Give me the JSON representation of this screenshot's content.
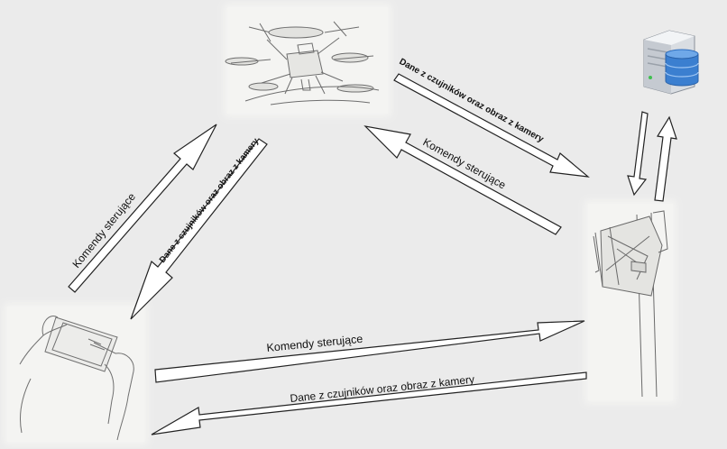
{
  "labels": {
    "drone_to_tower": "Dane z czujników oraz obraz z kamery",
    "tower_to_drone": "Komendy sterujące",
    "phone_to_drone": "Komendy sterujące",
    "drone_to_phone": "Dane z czujników oraz obraz z kamery",
    "phone_to_tower": "Komendy sterujące",
    "tower_to_phone": "Dane z czujników oraz obraz z kamery"
  },
  "nodes": [
    "drone-sketch",
    "tablet-hands-sketch",
    "tower-sketch",
    "server-icon"
  ],
  "colors": {
    "arrow_fill": "#ffffff",
    "arrow_stroke": "#222222",
    "sketch": "#6e6e6e",
    "server_blue": "#3b7fd0"
  }
}
